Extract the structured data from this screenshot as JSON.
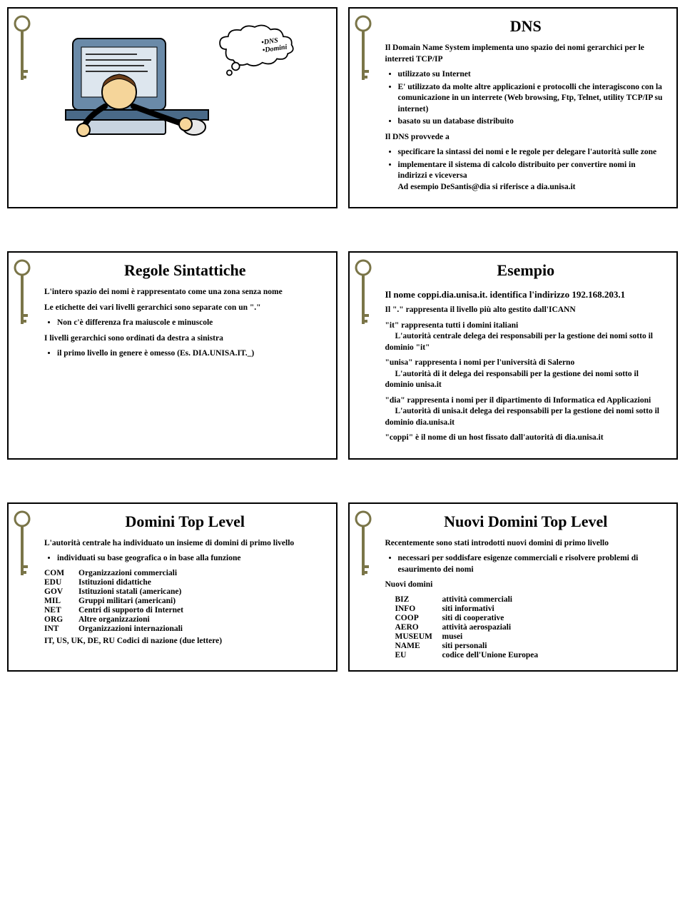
{
  "slide1": {
    "cloud_line1": "•DNS",
    "cloud_line2": "•Domini"
  },
  "slide2": {
    "title": "DNS",
    "intro": "Il Domain Name System implementa uno spazio dei nomi gerarchici per le interreti TCP/IP",
    "b1": "utilizzato su Internet",
    "b2": "E' utilizzato da molte altre applicazioni e protocolli che interagiscono con la comunicazione in un interrete (Web browsing, Ftp, Telnet, utility TCP/IP su internet)",
    "b3": "basato su un database distribuito",
    "sub_title": "Il DNS provvede a",
    "s1": "specificare la sintassi dei nomi e le regole per delegare l'autorità sulle zone",
    "s2": "implementare il sistema di calcolo distribuito per convertire nomi in indirizzi e viceversa",
    "s2_ex": "Ad esempio DeSantis@dia si riferisce a dia.unisa.it"
  },
  "slide3": {
    "title": "Regole Sintattiche",
    "p1": "L'intero spazio dei nomi è rappresentato come una zona senza nome",
    "p2": "Le etichette dei vari livelli gerarchici sono separate con un \".\"",
    "p2b": "Non c'è differenza fra maiuscole e minuscole",
    "p3": "I livelli gerarchici sono ordinati da destra a sinistra",
    "p3b": "il primo livello in genere è omesso (Es. DIA.UNISA.IT._)"
  },
  "slide4": {
    "title": "Esempio",
    "subtitle": "Il nome coppi.dia.unisa.it. identifica l'indirizzo 192.168.203.1",
    "p1": "Il \".\" rappresenta il livello più alto gestito dall'ICANN",
    "p2a": "\"it\" rappresenta tutti i domini italiani",
    "p2b": "L'autorità centrale delega dei responsabili per la gestione dei nomi sotto il dominio \"it\"",
    "p3a": "\"unisa\" rappresenta i nomi per l'università di Salerno",
    "p3b": "L'autorità di it delega dei responsabili per la gestione dei nomi sotto il dominio unisa.it",
    "p4a": "\"dia\" rappresenta i nomi per il dipartimento di Informatica ed Applicazioni",
    "p4b": "L'autorità di unisa.it delega dei responsabili per la gestione dei nomi sotto il dominio dia.unisa.it",
    "p5": "\"coppi\" è il nome di un host fissato dall'autorità di dia.unisa.it"
  },
  "slide5": {
    "title": "Domini Top Level",
    "intro": "L'autorità centrale ha individuato un insieme di domini di primo livello",
    "intro_b": "individuati su base geografica o in base alla funzione",
    "rows": [
      {
        "c": "COM",
        "d": "Organizzazioni commerciali"
      },
      {
        "c": "EDU",
        "d": "Istituzioni didattiche"
      },
      {
        "c": "GOV",
        "d": "Istituzioni statali (americane)"
      },
      {
        "c": "MIL",
        "d": "Gruppi militari (americani)"
      },
      {
        "c": "NET",
        "d": "Centri di supporto di Internet"
      },
      {
        "c": "ORG",
        "d": "Altre organizzazioni"
      },
      {
        "c": "INT",
        "d": "Organizzazioni internazionali"
      }
    ],
    "last": "IT, US, UK, DE, RU    Codici di nazione (due lettere)"
  },
  "slide6": {
    "title": "Nuovi Domini Top Level",
    "intro": "Recentemente sono stati introdotti nuovi domini di primo livello",
    "intro_b": "necessari per soddisfare esigenze commerciali e risolvere problemi di esaurimento dei nomi",
    "sub": "Nuovi domini",
    "rows": [
      {
        "c": "BIZ",
        "d": "attività commerciali"
      },
      {
        "c": "INFO",
        "d": "siti informativi"
      },
      {
        "c": "COOP",
        "d": "siti di cooperative"
      },
      {
        "c": "AERO",
        "d": "attività aerospaziali"
      },
      {
        "c": "MUSEUM",
        "d": "musei"
      },
      {
        "c": "NAME",
        "d": "siti personali"
      },
      {
        "c": "EU",
        "d": "codice dell'Unione Europea"
      }
    ]
  }
}
